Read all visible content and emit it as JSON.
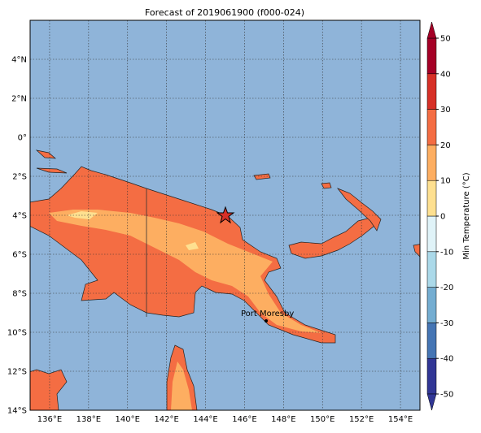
{
  "title": "Forecast of 2019061900 (f000-024)",
  "map": {
    "lon_range": [
      135,
      155
    ],
    "lat_range": [
      -14,
      6
    ],
    "lon_ticks": [
      {
        "value": 136,
        "label": "136°E"
      },
      {
        "value": 138,
        "label": "138°E"
      },
      {
        "value": 140,
        "label": "140°E"
      },
      {
        "value": 142,
        "label": "142°E"
      },
      {
        "value": 144,
        "label": "144°E"
      },
      {
        "value": 146,
        "label": "146°E"
      },
      {
        "value": 148,
        "label": "148°E"
      },
      {
        "value": 150,
        "label": "150°E"
      },
      {
        "value": 152,
        "label": "152°E"
      },
      {
        "value": 154,
        "label": "154°E"
      }
    ],
    "lat_ticks": [
      {
        "value": 4,
        "label": "4°N"
      },
      {
        "value": 2,
        "label": "2°N"
      },
      {
        "value": 0,
        "label": "0°"
      },
      {
        "value": -2,
        "label": "2°S"
      },
      {
        "value": -4,
        "label": "4°S"
      },
      {
        "value": -6,
        "label": "6°S"
      },
      {
        "value": -8,
        "label": "8°S"
      },
      {
        "value": -10,
        "label": "10°S"
      },
      {
        "value": -12,
        "label": "12°S"
      },
      {
        "value": -14,
        "label": "14°S"
      }
    ],
    "place": "Port Moresby"
  },
  "colorbar": {
    "label": "Min Temperature (°C)",
    "range": [
      -50,
      50
    ],
    "ticks": [
      -50,
      -40,
      -30,
      -20,
      -10,
      0,
      10,
      20,
      30,
      40,
      50
    ],
    "colors": [
      "#313695",
      "#4575b4",
      "#74add1",
      "#abd9e9",
      "#e0f3f8",
      "#fee090",
      "#fdae61",
      "#f46d43",
      "#d73027",
      "#a50026"
    ]
  }
}
